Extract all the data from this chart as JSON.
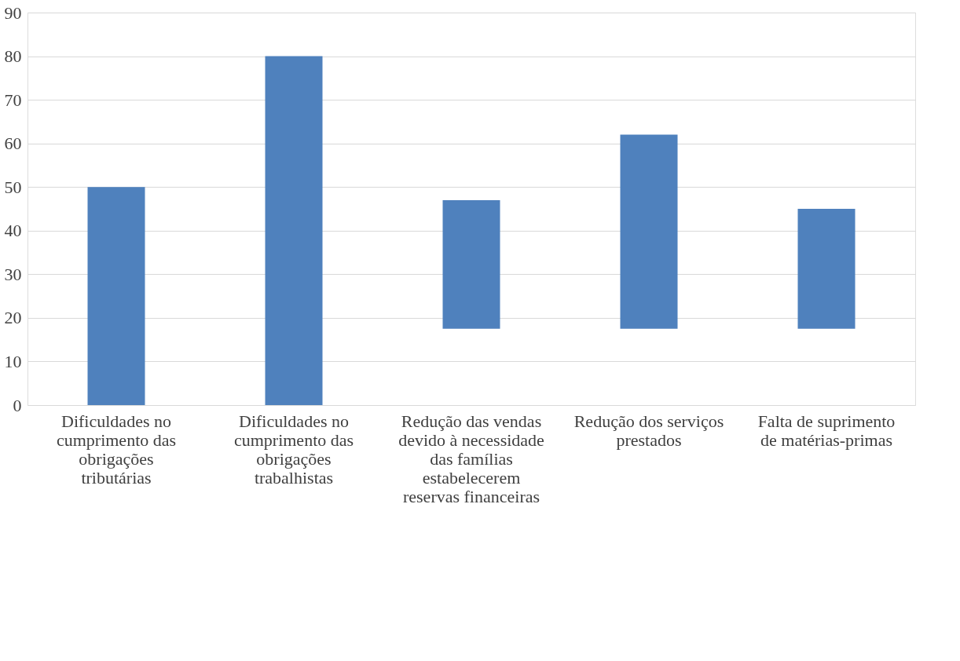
{
  "chart_data": {
    "type": "bar",
    "categories": [
      "Dificuldades no cumprimento das obrigações tributárias",
      "Dificuldades no cumprimento das obrigações trabalhistas",
      "Redução das vendas devido à necessidade das famílias estabelecerem reservas financeiras",
      "Redução dos serviços prestados",
      "Falta de suprimento de matérias-primas"
    ],
    "values": [
      50,
      80,
      29.5,
      44.5,
      27.5
    ],
    "base": [
      0,
      0,
      17.5,
      17.5,
      17.5
    ],
    "color": "#4f81bd",
    "ylim": [
      0,
      90
    ],
    "yticks": [
      0,
      10,
      20,
      30,
      40,
      50,
      60,
      70,
      80,
      90
    ],
    "grid": "y"
  }
}
